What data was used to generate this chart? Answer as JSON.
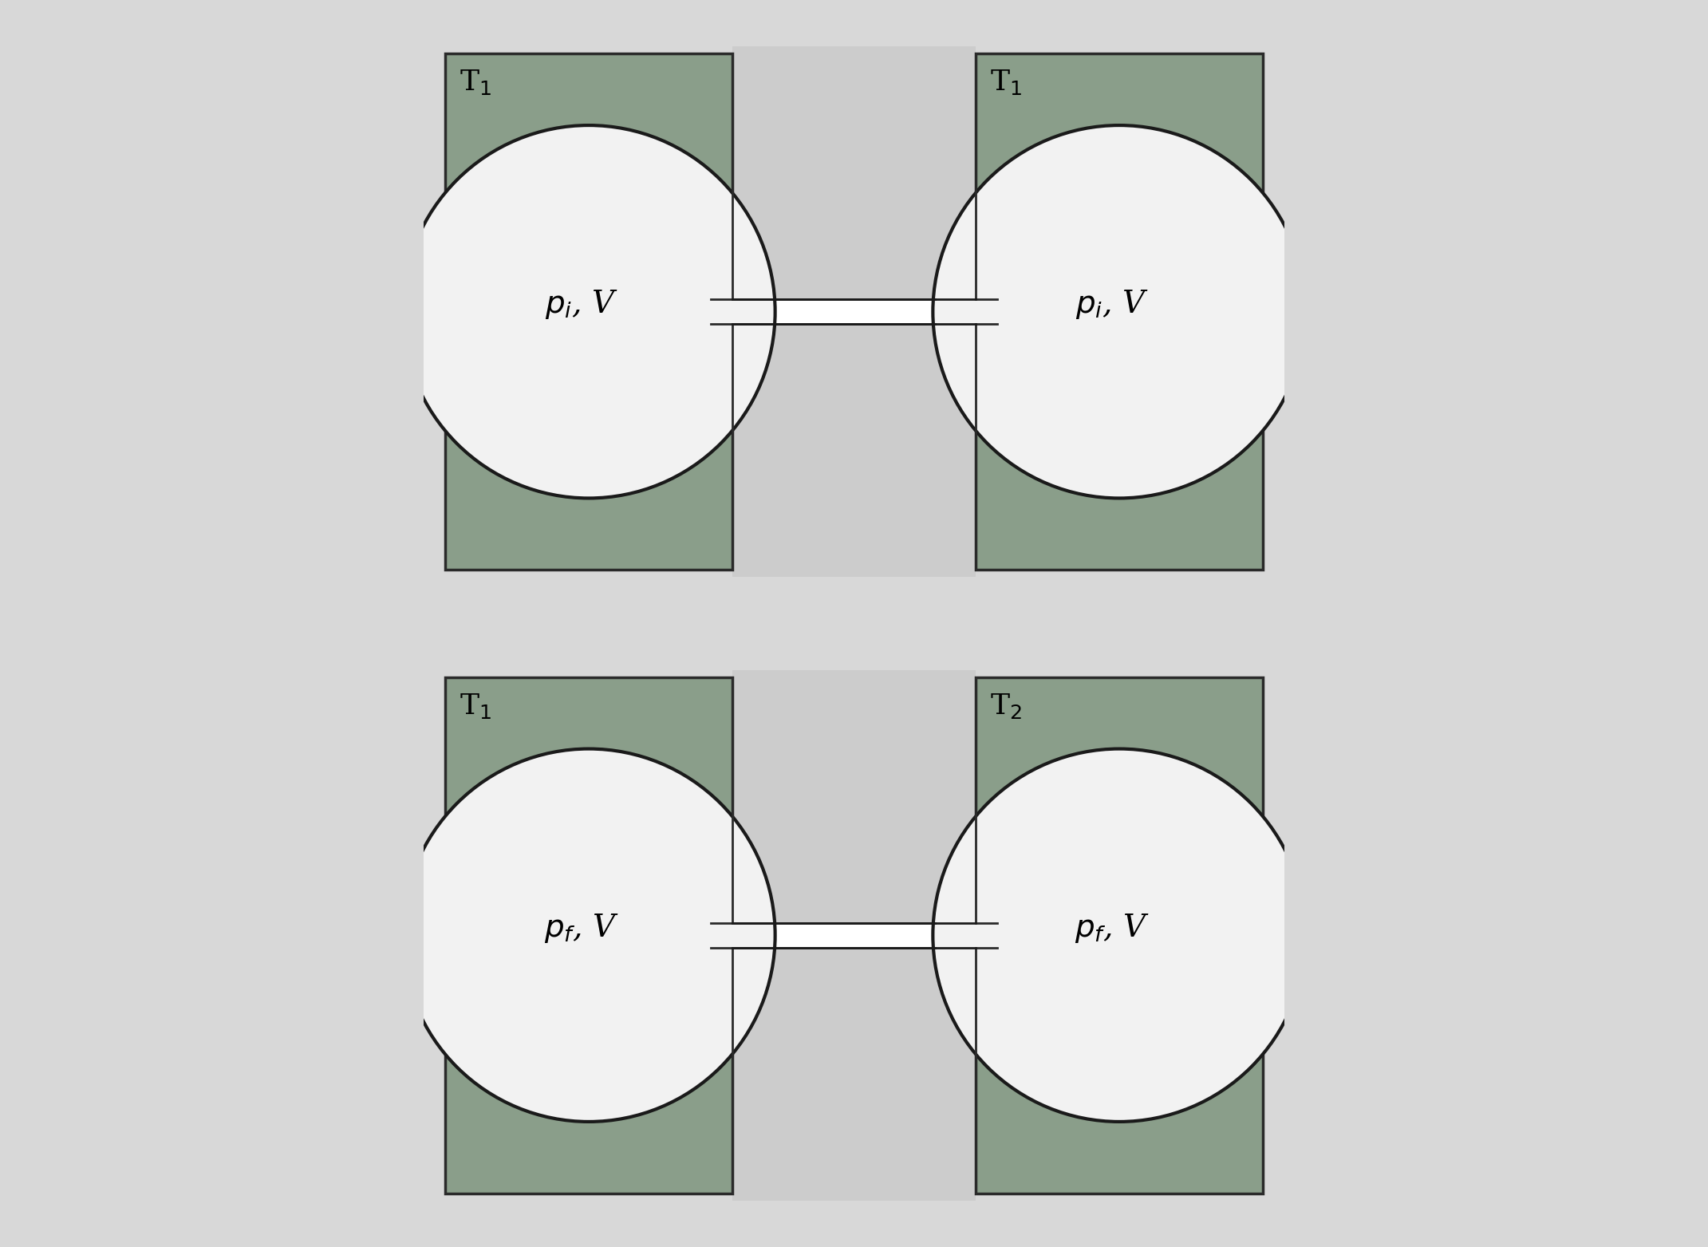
{
  "bg_color": "#d8d8d8",
  "box_bg_color": "#8a9e8a",
  "box_edge_color": "#2a2a2a",
  "tube_bg_color": "#cccccc",
  "bulb_face_color": "#f2f2f2",
  "bulb_edge_color": "#1a1a1a",
  "diagrams": [
    {
      "left_temp": "T$_1$",
      "right_temp": "T$_1$",
      "left_label": "$p_i$, V",
      "right_label": "$p_i$, V"
    },
    {
      "left_temp": "T$_1$",
      "right_temp": "T$_2$",
      "left_label": "$p_f$, V",
      "right_label": "$p_f$, V"
    }
  ],
  "fig_width": 21.41,
  "fig_height": 15.63,
  "dpi": 100
}
